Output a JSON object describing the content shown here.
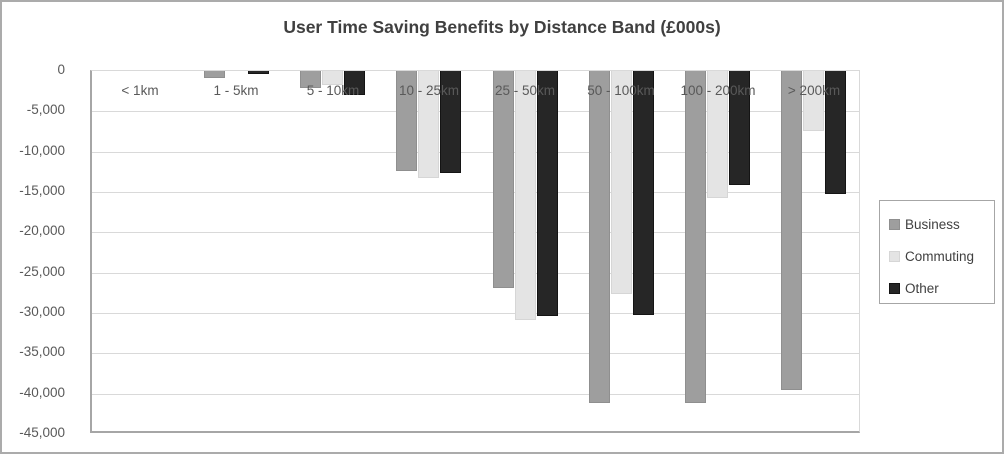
{
  "chart": {
    "title": "User Time Saving Benefits by Distance Band (£000s)"
  },
  "chart_data": {
    "type": "bar",
    "title": "User Time Saving Benefits by Distance Band (£000s)",
    "xlabel": "",
    "ylabel": "",
    "categories": [
      "< 1km",
      "1 - 5km",
      "5 - 10km",
      "10 - 25km",
      "25 - 50km",
      "50 - 100km",
      "100 - 200km",
      "> 200km"
    ],
    "series": [
      {
        "name": "Business",
        "color": "#9e9e9e",
        "border_color": "#8f8f8f",
        "values": [
          0,
          -900,
          -2100,
          -12400,
          -26900,
          -41200,
          -41200,
          -39500
        ]
      },
      {
        "name": "Commuting",
        "color": "#e4e4e4",
        "border_color": "#d6d6d6",
        "values": [
          0,
          0,
          -1700,
          -13300,
          -30900,
          -27700,
          -15700,
          -7400
        ]
      },
      {
        "name": "Other",
        "color": "#262626",
        "border_color": "#141414",
        "values": [
          0,
          -400,
          -3000,
          -12600,
          -30400,
          -30200,
          -14100,
          -15300
        ]
      }
    ],
    "ylim": [
      -45000,
      0
    ],
    "ytick_interval": 5000,
    "ytick_labels": [
      "0",
      "-5,000",
      "-10,000",
      "-15,000",
      "-20,000",
      "-25,000",
      "-30,000",
      "-35,000",
      "-40,000",
      "-45,000"
    ],
    "grid": true,
    "legend_position": "right"
  },
  "colors": {
    "title_text": "#404040",
    "axis_text": "#595959",
    "gridline": "#d9d9d9",
    "axis_line": "#a6a6a6",
    "frame_border": "#ababab",
    "background": "#ffffff"
  }
}
